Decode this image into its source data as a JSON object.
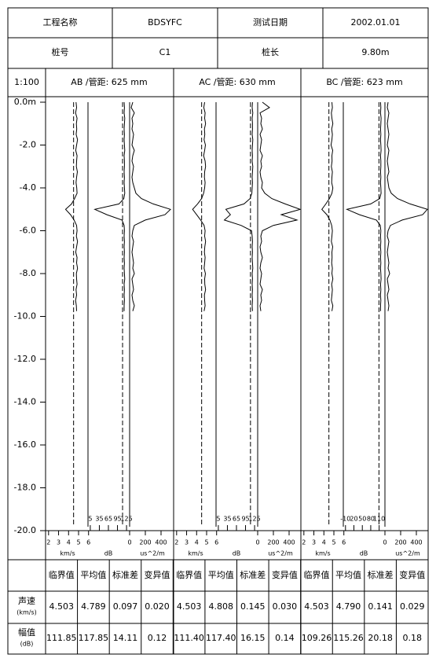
{
  "header": {
    "rows": [
      [
        "工程名称",
        "BDSYFC",
        "测试日期",
        "2002.01.01"
      ],
      [
        "桩号",
        "C1",
        "桩长",
        "9.80m"
      ]
    ],
    "scale": "1:100"
  },
  "depth_axis": {
    "ylim": [
      0,
      -20
    ],
    "yticks": [
      {
        "value": 0,
        "label": "0.0m"
      },
      {
        "value": -2,
        "label": "-2.0"
      },
      {
        "value": -4,
        "label": "-4.0"
      },
      {
        "value": -6,
        "label": "-6.0"
      },
      {
        "value": -8,
        "label": "-8.0"
      },
      {
        "value": -10,
        "label": "-10.0"
      },
      {
        "value": -12,
        "label": "-12.0"
      },
      {
        "value": -14,
        "label": "-14.0"
      },
      {
        "value": -16,
        "label": "-16.0"
      },
      {
        "value": -18,
        "label": "-18.0"
      },
      {
        "value": -20,
        "label": "-20.0"
      }
    ],
    "depths": [
      0,
      -0.25,
      -0.5,
      -0.75,
      -1,
      -1.25,
      -1.5,
      -1.75,
      -2,
      -2.25,
      -2.5,
      -2.75,
      -3,
      -3.25,
      -3.5,
      -3.75,
      -4,
      -4.25,
      -4.5,
      -4.75,
      -5,
      -5.25,
      -5.5,
      -5.75,
      -6,
      -6.25,
      -6.5,
      -6.75,
      -7,
      -7.25,
      -7.5,
      -7.75,
      -8,
      -8.25,
      -8.5,
      -8.75,
      -9,
      -9.25,
      -9.5,
      -9.75
    ]
  },
  "chart_data": [
    {
      "type": "line",
      "title": "AB /管距: 625 mm",
      "series": [
        {
          "unit": "km/s",
          "color": "#000000",
          "xlim": [
            1.7,
            6.1
          ],
          "xticks": [
            2,
            3,
            4,
            5,
            6
          ],
          "values": [
            4.75,
            4.8,
            4.7,
            4.85,
            4.78,
            4.82,
            4.76,
            4.9,
            4.8,
            4.72,
            4.85,
            4.8,
            4.78,
            4.88,
            4.8,
            4.75,
            4.82,
            4.85,
            4.6,
            4.3,
            3.7,
            4.2,
            4.55,
            4.8,
            4.85,
            4.78,
            4.9,
            4.8,
            4.72,
            4.85,
            4.8,
            4.9,
            4.78,
            4.8,
            4.85,
            4.75,
            4.8,
            4.7,
            4.78,
            4.8
          ]
        },
        {
          "unit": "dB",
          "color": "#000000",
          "xlim": [
            0,
            130
          ],
          "xticks": [
            5,
            35,
            65,
            95,
            125
          ],
          "values": [
            117,
            118,
            117,
            119,
            118,
            117,
            118,
            117,
            118,
            119,
            117,
            118,
            118,
            117,
            118,
            117,
            118,
            119,
            116,
            100,
            20,
            60,
            110,
            117,
            118,
            117,
            118,
            117,
            118,
            117,
            118,
            117,
            118,
            119,
            117,
            118,
            117,
            118,
            117,
            117
          ]
        },
        {
          "unit": "us^2/m",
          "color": "#000000",
          "xlim": [
            0,
            560
          ],
          "xticks": [
            0,
            200,
            400
          ],
          "values": [
            40,
            20,
            60,
            30,
            40,
            30,
            50,
            40,
            30,
            60,
            40,
            30,
            50,
            40,
            30,
            40,
            60,
            80,
            150,
            300,
            520,
            450,
            200,
            60,
            40,
            30,
            50,
            40,
            30,
            40,
            50,
            40,
            60,
            30,
            40,
            50,
            30,
            40,
            60,
            40
          ]
        }
      ]
    },
    {
      "type": "line",
      "title": "AC /管距: 630 mm",
      "series": [
        {
          "unit": "km/s",
          "color": "#000000",
          "xlim": [
            1.7,
            6.1
          ],
          "xticks": [
            2,
            3,
            4,
            5,
            6
          ],
          "values": [
            4.8,
            4.72,
            4.85,
            4.8,
            4.9,
            4.78,
            4.82,
            4.75,
            4.88,
            4.8,
            4.7,
            4.85,
            4.9,
            4.8,
            4.78,
            4.85,
            4.8,
            4.7,
            4.5,
            4.1,
            3.6,
            4.0,
            4.4,
            4.75,
            4.85,
            4.8,
            4.9,
            4.82,
            4.78,
            4.85,
            4.8,
            4.75,
            4.88,
            4.8,
            4.82,
            4.9,
            4.78,
            4.8,
            4.85,
            4.75
          ]
        },
        {
          "unit": "dB",
          "color": "#000000",
          "xlim": [
            0,
            130
          ],
          "xticks": [
            5,
            35,
            65,
            95,
            125
          ],
          "values": [
            118,
            117,
            119,
            117,
            118,
            118,
            117,
            119,
            118,
            117,
            118,
            117,
            119,
            118,
            117,
            118,
            117,
            116,
            110,
            90,
            30,
            45,
            25,
            80,
            115,
            117,
            118,
            117,
            118,
            117,
            118,
            119,
            117,
            118,
            117,
            118,
            117,
            118,
            117,
            118
          ]
        },
        {
          "unit": "us^2/m",
          "color": "#000000",
          "xlim": [
            0,
            560
          ],
          "xticks": [
            0,
            200,
            400
          ],
          "values": [
            60,
            150,
            30,
            50,
            40,
            60,
            30,
            50,
            40,
            30,
            60,
            40,
            50,
            30,
            40,
            60,
            50,
            90,
            180,
            350,
            540,
            300,
            500,
            200,
            60,
            40,
            50,
            30,
            40,
            60,
            40,
            30,
            50,
            40,
            30,
            60,
            40,
            50,
            30,
            40
          ]
        }
      ]
    },
    {
      "type": "line",
      "title": "BC /管距: 623 mm",
      "series": [
        {
          "unit": "km/s",
          "color": "#000000",
          "xlim": [
            1.7,
            6.1
          ],
          "xticks": [
            2,
            3,
            4,
            5,
            6
          ],
          "values": [
            4.8,
            4.85,
            4.75,
            4.8,
            4.9,
            4.78,
            4.85,
            4.8,
            4.72,
            4.88,
            4.8,
            4.82,
            4.75,
            4.85,
            4.8,
            4.78,
            4.9,
            4.8,
            4.55,
            4.2,
            3.8,
            4.3,
            4.6,
            4.78,
            4.85,
            4.8,
            4.75,
            4.88,
            4.8,
            4.82,
            4.78,
            4.85,
            4.8,
            4.9,
            4.78,
            4.85,
            4.8,
            4.75,
            4.9,
            4.8
          ]
        },
        {
          "unit": "dB",
          "color": "#000000",
          "xlim": [
            -15,
            125
          ],
          "xticks": [
            -10,
            20,
            50,
            80,
            110
          ],
          "values": [
            115,
            116,
            115,
            117,
            116,
            115,
            116,
            115,
            116,
            117,
            115,
            116,
            116,
            115,
            116,
            115,
            116,
            117,
            112,
            80,
            -5,
            40,
            100,
            114,
            116,
            115,
            116,
            115,
            116,
            115,
            116,
            115,
            116,
            117,
            115,
            116,
            115,
            116,
            115,
            115
          ]
        },
        {
          "unit": "us^2/m",
          "color": "#000000",
          "xlim": [
            0,
            560
          ],
          "xticks": [
            0,
            200,
            400
          ],
          "values": [
            40,
            30,
            50,
            40,
            30,
            40,
            50,
            40,
            30,
            50,
            40,
            30,
            40,
            50,
            30,
            40,
            50,
            80,
            160,
            320,
            540,
            480,
            220,
            70,
            40,
            30,
            50,
            40,
            30,
            40,
            50,
            40,
            60,
            30,
            40,
            50,
            30,
            40,
            50,
            40
          ]
        }
      ]
    }
  ],
  "table": {
    "headers": [
      "临界值",
      "平均值",
      "标准差",
      "变异值",
      "临界值",
      "平均值",
      "标准差",
      "变异值",
      "临界值",
      "平均值",
      "标准差",
      "变异值"
    ],
    "rows": [
      {
        "label": "声速",
        "unit": "(km/s)",
        "values": [
          "4.503",
          "4.789",
          "0.097",
          "0.020",
          "4.503",
          "4.808",
          "0.145",
          "0.030",
          "4.503",
          "4.790",
          "0.141",
          "0.029"
        ]
      },
      {
        "label": "幅值",
        "unit": "(dB)",
        "values": [
          "111.85",
          "117.85",
          "14.11",
          "0.12",
          "111.40",
          "117.40",
          "16.15",
          "0.14",
          "109.26",
          "115.26",
          "20.18",
          "0.18"
        ]
      }
    ]
  }
}
